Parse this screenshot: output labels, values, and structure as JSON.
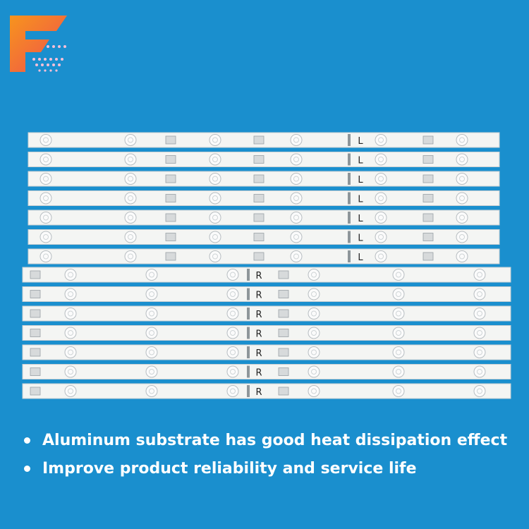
{
  "strips": [
    {
      "label": "L"
    },
    {
      "label": "L"
    },
    {
      "label": "L"
    },
    {
      "label": "L"
    },
    {
      "label": "L"
    },
    {
      "label": "L"
    },
    {
      "label": "L"
    },
    {
      "label": "R"
    },
    {
      "label": "R"
    },
    {
      "label": "R"
    },
    {
      "label": "R"
    },
    {
      "label": "R"
    },
    {
      "label": "R"
    },
    {
      "label": "R"
    }
  ],
  "features": [
    "Aluminum substrate has good heat dissipation effect",
    "Improve product reliability and service life"
  ]
}
